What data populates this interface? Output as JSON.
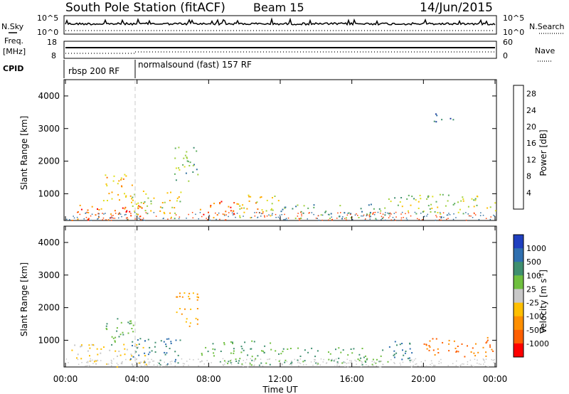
{
  "header": {
    "station": "South Pole Station (fitACF)",
    "beam": "Beam 15",
    "date": "14/Jun/2015"
  },
  "summary": {
    "nsky_label": "N.Sky",
    "nsearch_label": "N.Search",
    "freq_label_top": "Freq.",
    "freq_label_unit": "[MHz]",
    "nave_label": "Nave",
    "cpid_label": "CPID",
    "noise_ticks": [
      "10^5",
      "10^0"
    ],
    "freq_ticks": [
      "18",
      "8"
    ],
    "nave_ticks": [
      "60",
      "0"
    ],
    "cpid_segments": [
      {
        "label": "rbsp 200 RF",
        "start_hour": 0,
        "end_hour": 4
      },
      {
        "label": "normalsound (fast) 157 RF",
        "start_hour": 4,
        "end_hour": 24
      }
    ]
  },
  "power_colorbar": {
    "title": "Power [dB]",
    "ticks": [
      "28",
      "24",
      "20",
      "16",
      "12",
      "8",
      "4"
    ],
    "tick_values": [
      28,
      24,
      20,
      16,
      12,
      8,
      4
    ],
    "range": [
      0,
      30
    ],
    "colors": [
      "#0000ff",
      "#1f3f9f",
      "#2f6f9f",
      "#3f8f6f",
      "#5faf5f",
      "#9fcf3f",
      "#dfdf1f",
      "#ffbf00",
      "#ff9f00",
      "#ff6f00",
      "#ff3f00",
      "#ff0000"
    ]
  },
  "velocity_colorbar": {
    "title": "Velocity [m s",
    "title_sup": "-1",
    "title_end": "]",
    "ticks": [
      "1000",
      "500",
      "100",
      "25",
      "-25",
      "-100",
      "-500",
      "-1000"
    ],
    "colors": [
      "#1f3fbf",
      "#2f6faf",
      "#3f8f6f",
      "#6fbf3f",
      "#c8c8c8",
      "#ffbf00",
      "#ff8f00",
      "#ff5f00",
      "#ff0000"
    ]
  },
  "chart_data": {
    "type": "heatmap",
    "xlabel": "Time UT",
    "ylabel": "Slant Range [km]",
    "x_ticks": [
      "00:00",
      "04:00",
      "08:00",
      "12:00",
      "16:00",
      "20:00",
      "00:00"
    ],
    "x_tick_hours": [
      0,
      4,
      8,
      12,
      16,
      20,
      24
    ],
    "xlim_hours": [
      0,
      24
    ],
    "y_ticks": [
      "4000",
      "3000",
      "2000",
      "1000"
    ],
    "y_tick_values": [
      4000,
      3000,
      2000,
      1000
    ],
    "ylim": [
      180,
      4500
    ],
    "panels": [
      {
        "name": "power",
        "colorbar": "power_colorbar",
        "blobs": [
          {
            "t": [
              0.3,
              4.5
            ],
            "r": [
              200,
              700
            ],
            "value": 24
          },
          {
            "t": [
              2.1,
              3.8
            ],
            "r": [
              800,
              1700
            ],
            "value": 20
          },
          {
            "t": [
              3.6,
              6.5
            ],
            "r": [
              250,
              1100
            ],
            "value": 16
          },
          {
            "t": [
              6.0,
              7.4
            ],
            "r": [
              1400,
              2500
            ],
            "value": 12
          },
          {
            "t": [
              7.5,
              9.5
            ],
            "r": [
              250,
              800
            ],
            "value": 26
          },
          {
            "t": [
              9.5,
              12.0
            ],
            "r": [
              250,
              1000
            ],
            "value": 18
          },
          {
            "t": [
              12.0,
              18.0
            ],
            "r": [
              250,
              700
            ],
            "value": 10
          },
          {
            "t": [
              18.0,
              24.0
            ],
            "r": [
              400,
              1000
            ],
            "value": 14
          },
          {
            "t": [
              20.5,
              21.8
            ],
            "r": [
              3200,
              3500
            ],
            "value": 6
          }
        ]
      },
      {
        "name": "velocity",
        "colorbar": "velocity_colorbar",
        "blobs": [
          {
            "t": [
              0.3,
              4.5
            ],
            "r": [
              200,
              900
            ],
            "value": -25
          },
          {
            "t": [
              2.1,
              3.8
            ],
            "r": [
              800,
              1700
            ],
            "value": 100
          },
          {
            "t": [
              3.6,
              6.5
            ],
            "r": [
              250,
              1100
            ],
            "value": 500
          },
          {
            "t": [
              6.0,
              7.4
            ],
            "r": [
              1400,
              2500
            ],
            "value": -100
          },
          {
            "t": [
              7.5,
              12.0
            ],
            "r": [
              250,
              1000
            ],
            "value": 100
          },
          {
            "t": [
              12.0,
              18.0
            ],
            "r": [
              250,
              800
            ],
            "value": 100
          },
          {
            "t": [
              18.0,
              20.0
            ],
            "r": [
              400,
              1000
            ],
            "value": 500
          },
          {
            "t": [
              20.0,
              24.0
            ],
            "r": [
              500,
              1100
            ],
            "value": -500
          }
        ]
      }
    ]
  }
}
